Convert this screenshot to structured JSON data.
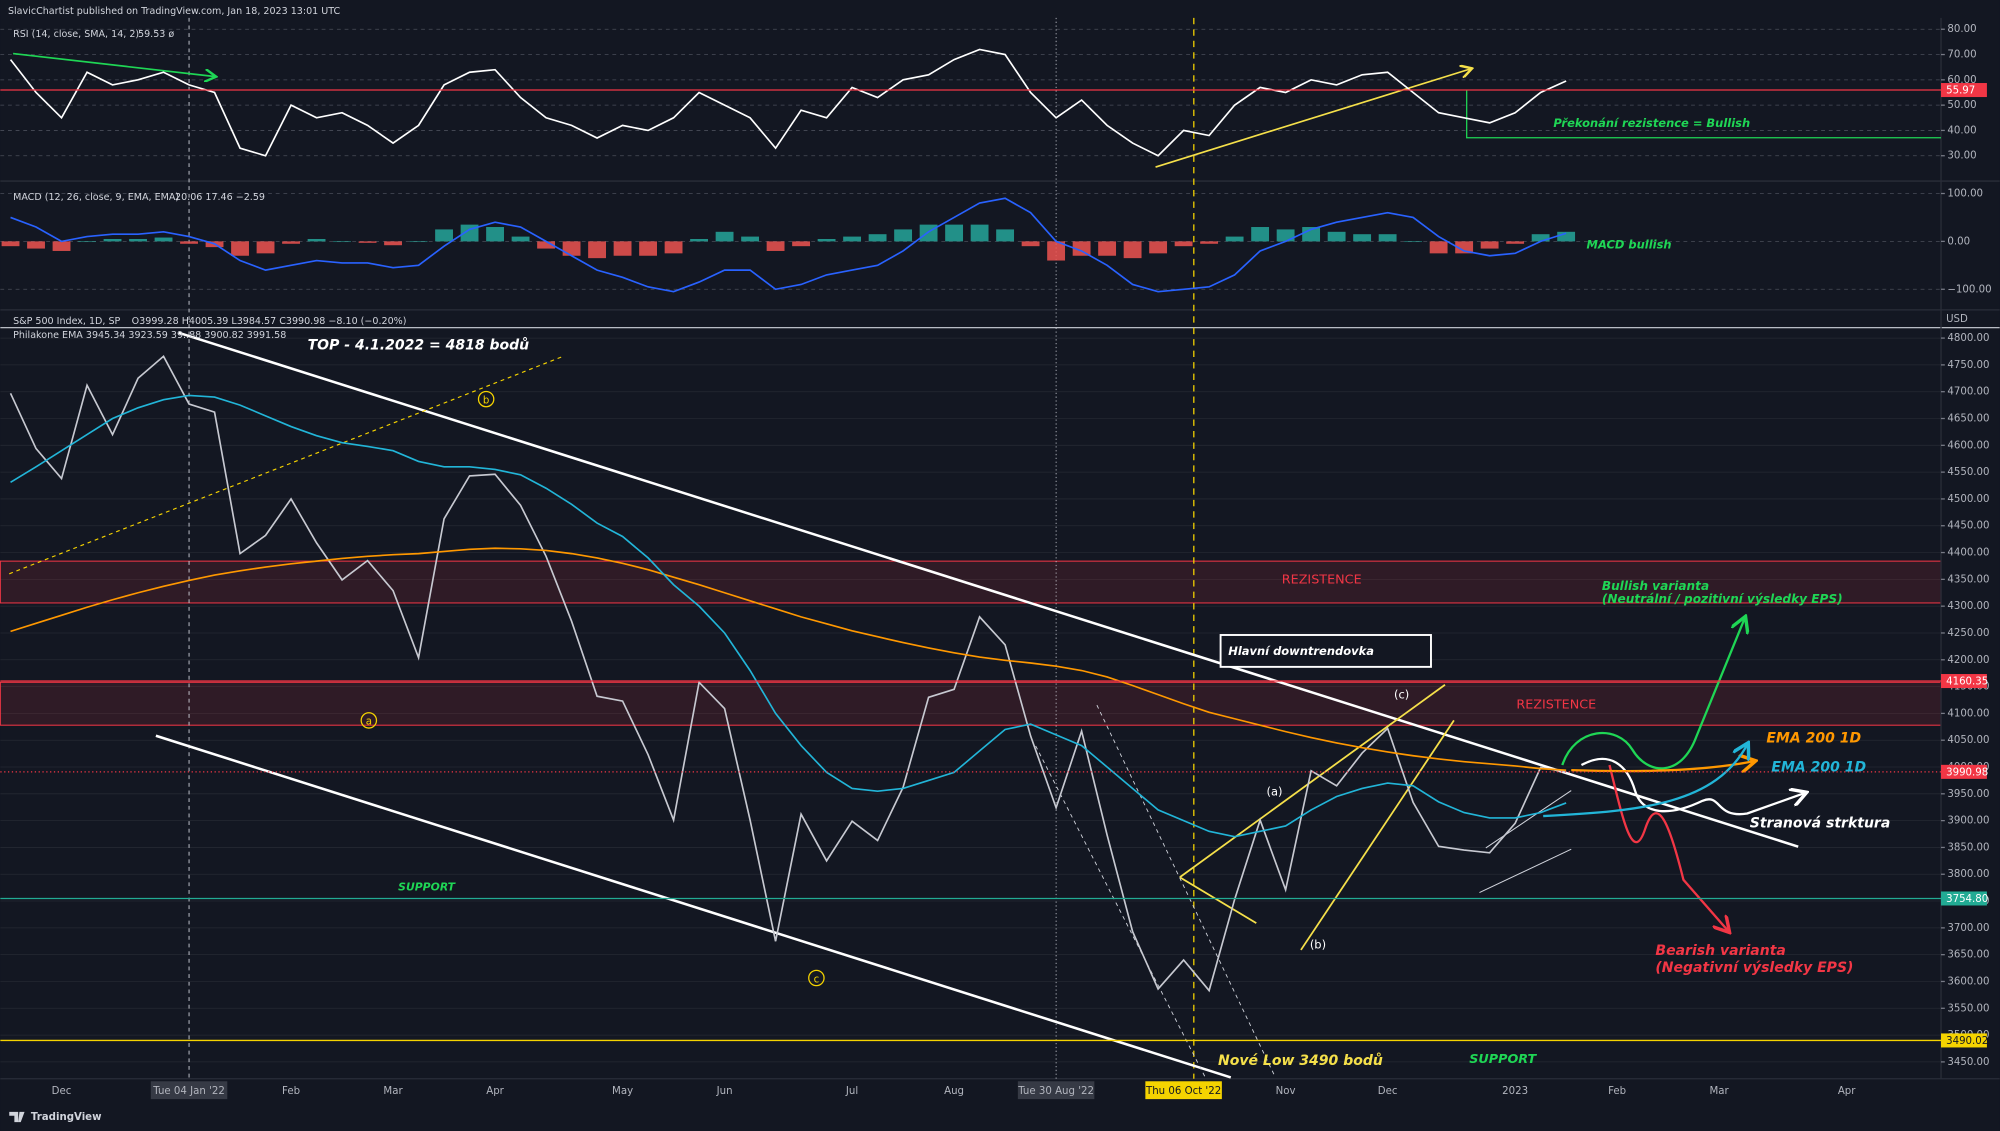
{
  "header": "SlavicChartist published on TradingView.com, Jan 18, 2023 13:01 UTC",
  "footer": "TradingView",
  "chart_data": [
    {
      "type": "line",
      "legend_values": "59.53 ø",
      "ylim": [
        21,
        84.5
      ],
      "yticks": [
        {
          "value": 30,
          "label": "30.00"
        },
        {
          "value": 40,
          "label": "40.00"
        },
        {
          "value": 50,
          "label": "50.00"
        },
        {
          "value": 60,
          "label": "60.00"
        },
        {
          "value": 70,
          "label": "70.00"
        },
        {
          "value": 80,
          "label": "80.00"
        }
      ],
      "levels": [
        {
          "value": 55.97,
          "label": "55.97",
          "color": "#f23645",
          "style": "solid"
        }
      ],
      "annotations": [
        "Překonání rezistence = Bullish"
      ],
      "series": [
        {
          "name": "RSI (14, close, SMA, 14, 2)",
          "color": "#ffffff",
          "type": "line",
          "values": [
            68,
            55,
            45,
            63,
            58,
            60,
            63,
            58,
            55,
            33,
            30,
            50,
            45,
            47,
            42,
            35,
            42,
            58,
            63,
            64,
            53,
            45,
            42,
            37,
            42,
            40,
            45,
            55,
            50,
            45,
            33,
            48,
            45,
            57,
            53,
            60,
            62,
            68,
            72,
            70,
            55,
            45,
            52,
            42,
            35,
            30,
            40,
            38,
            50,
            57,
            55,
            60,
            58,
            62,
            63,
            55,
            47,
            45,
            43,
            47,
            55,
            59.53,
            null,
            null,
            null,
            null,
            null,
            null,
            null,
            null,
            null,
            null,
            null,
            null,
            null,
            null
          ]
        }
      ]
    },
    {
      "type": "line",
      "legend_values": "20.06 17.46 −2.59",
      "ylim": [
        -135,
        118
      ],
      "yticks": [
        {
          "value": -100,
          "label": "−100.00"
        },
        {
          "value": 0,
          "label": "0.00"
        },
        {
          "value": 100,
          "label": "100.00"
        }
      ],
      "annotations": [
        "MACD bullish"
      ],
      "series": [
        {
          "name": "MACD (12, 26, close, 9, EMA, EMA)",
          "color": "#26a69a",
          "negative_color": "#ef5350",
          "type": "histogram",
          "values": [
            -10,
            -15,
            -20,
            0,
            5,
            5,
            8,
            -5,
            -12,
            -30,
            -25,
            -5,
            5,
            0,
            -3,
            -8,
            0,
            25,
            35,
            30,
            10,
            -15,
            -30,
            -35,
            -30,
            -30,
            -25,
            5,
            20,
            10,
            -20,
            -10,
            5,
            10,
            15,
            25,
            35,
            35,
            35,
            25,
            -10,
            -40,
            -30,
            -30,
            -35,
            -25,
            -10,
            -5,
            10,
            30,
            25,
            30,
            20,
            15,
            15,
            0,
            -25,
            -25,
            -15,
            -5,
            15,
            20,
            null,
            null,
            null,
            null,
            null,
            null,
            null,
            null,
            null,
            null,
            null,
            null,
            null,
            null
          ]
        },
        {
          "color": "#2962ff",
          "type": "line",
          "values": [
            50,
            30,
            0,
            10,
            15,
            15,
            20,
            10,
            -5,
            -40,
            -60,
            -50,
            -40,
            -45,
            -45,
            -55,
            -50,
            -10,
            25,
            40,
            30,
            0,
            -30,
            -60,
            -75,
            -95,
            -105,
            -85,
            -60,
            -60,
            -100,
            -90,
            -70,
            -60,
            -50,
            -20,
            20,
            50,
            80,
            90,
            60,
            0,
            -20,
            -50,
            -90,
            -105,
            -100,
            -95,
            -70,
            -20,
            0,
            25,
            40,
            50,
            60,
            50,
            10,
            -20,
            -30,
            -25,
            0,
            17,
            null,
            null,
            null,
            null,
            null,
            null,
            null,
            null,
            null,
            null,
            null,
            null,
            null,
            null
          ]
        }
      ]
    },
    {
      "type": "line",
      "currency": "USD",
      "ohlc": "O3999.28 H4005.39 L3984.57 C3990.98 −8.10 (−0.20%)",
      "ema_legend": "Philakone EMA 3945.34 3923.59 39..88 3900.82 3991.58",
      "categories": [
        null,
        null,
        "Dec",
        null,
        null,
        null,
        null,
        "Tue 04 Jan '22",
        null,
        null,
        null,
        "Feb",
        null,
        null,
        null,
        "Mar",
        null,
        null,
        null,
        "Apr",
        null,
        null,
        null,
        null,
        "May",
        null,
        null,
        null,
        "Jun",
        null,
        null,
        null,
        null,
        "Jul",
        null,
        null,
        null,
        "Aug",
        null,
        null,
        null,
        "Tue 30 Aug '22",
        null,
        null,
        null,
        null,
        "Thu 06 Oct '22",
        null,
        null,
        null,
        "Nov",
        null,
        null,
        null,
        "Dec",
        null,
        null,
        null,
        null,
        "2023",
        null,
        null,
        null,
        "Feb",
        null,
        null,
        null,
        "Mar",
        null,
        null,
        null,
        null,
        "Apr",
        null,
        null,
        null
      ],
      "ylim": [
        3421,
        4817
      ],
      "yticks": [
        {
          "value": 3450,
          "label": "3450.00"
        },
        {
          "value": 3500,
          "label": "3500.00"
        },
        {
          "value": 3550,
          "label": "3550.00"
        },
        {
          "value": 3600,
          "label": "3600.00"
        },
        {
          "value": 3650,
          "label": "3650.00"
        },
        {
          "value": 3700,
          "label": "3700.00"
        },
        {
          "value": 3750,
          "label": "3750.00"
        },
        {
          "value": 3800,
          "label": "3800.00"
        },
        {
          "value": 3850,
          "label": "3850.00"
        },
        {
          "value": 3900,
          "label": "3900.00"
        },
        {
          "value": 3950,
          "label": "3950.00"
        },
        {
          "value": 4000,
          "label": "4000.00"
        },
        {
          "value": 4050,
          "label": "4050.00"
        },
        {
          "value": 4100,
          "label": "4100.00"
        },
        {
          "value": 4150,
          "label": "4150.00"
        },
        {
          "value": 4200,
          "label": "4200.00"
        },
        {
          "value": 4250,
          "label": "4250.00"
        },
        {
          "value": 4300,
          "label": "4300.00"
        },
        {
          "value": 4350,
          "label": "4350.00"
        },
        {
          "value": 4400,
          "label": "4400.00"
        },
        {
          "value": 4450,
          "label": "4450.00"
        },
        {
          "value": 4500,
          "label": "4500.00"
        },
        {
          "value": 4550,
          "label": "4550.00"
        },
        {
          "value": 4600,
          "label": "4600.00"
        },
        {
          "value": 4650,
          "label": "4650.00"
        },
        {
          "value": 4700,
          "label": "4700.00"
        },
        {
          "value": 4750,
          "label": "4750.00"
        },
        {
          "value": 4800,
          "label": "4800.00"
        }
      ],
      "zones": [
        {
          "from": 4306,
          "to": 4384,
          "label": "REZISTENCE"
        },
        {
          "from": 4078,
          "to": 4158,
          "label": "REZISTENCE"
        }
      ],
      "levels": [
        {
          "value": 4160.35,
          "label": "4160.35",
          "color": "#f23645",
          "style": "solid"
        },
        {
          "value": 3990.98,
          "label": "3990.98",
          "color": "#f23645",
          "style": "dotted"
        },
        {
          "value": 3754.8,
          "label": "3754.80",
          "color": "#22ab94",
          "style": "solid",
          "text": "SUPPORT"
        },
        {
          "value": 3490.02,
          "label": "3490.02",
          "color": "#f5d300",
          "style": "solid",
          "text": "SUPPORT"
        }
      ],
      "annotations": [
        "TOP - 4.1.2022 = 4818 bodů",
        "Hlavní downtrendovka",
        "Bullish varianta",
        "(Neutrální / pozitivní výsledky EPS)",
        "Bearish varianta",
        "(Negativní výsledky EPS)",
        "Stranová strktura",
        "Nové Low 3490 bodů",
        "(a)",
        "(b)",
        "(c)",
        "a",
        "b",
        "c"
      ],
      "series": [
        {
          "name": "S&P 500 Index, 1D, SP",
          "color": "#c7c9d1",
          "type": "line",
          "values": [
            4697,
            4594,
            4538,
            4712,
            4620,
            4725,
            4766,
            4677,
            4662,
            4398,
            4432,
            4500,
            4418,
            4349,
            4385,
            4329,
            4204,
            4463,
            4543,
            4546,
            4488,
            4393,
            4272,
            4132,
            4123,
            4023,
            3901,
            4158,
            4109,
            3901,
            3675,
            3912,
            3825,
            3899,
            3863,
            3962,
            4130,
            4145,
            4280,
            4228,
            4058,
            3924,
            4067,
            3873,
            3693,
            3586,
            3640,
            3583,
            3753,
            3901,
            3771,
            3993,
            3965,
            4026,
            4072,
            3934,
            3852,
            3845,
            3840,
            3895,
            3999,
            3990.98,
            null,
            null,
            null,
            null,
            null,
            null,
            null,
            null,
            null,
            null,
            null,
            null,
            null,
            null
          ]
        },
        {
          "name": "EMA 200 1D",
          "color": "#ff9800",
          "type": "line",
          "values": [
            4253,
            4268,
            4283,
            4298,
            4312,
            4325,
            4337,
            4348,
            4358,
            4366,
            4373,
            4379,
            4384,
            4389,
            4393,
            4396,
            4398,
            4402,
            4406,
            4408,
            4407,
            4404,
            4398,
            4390,
            4380,
            4368,
            4354,
            4340,
            4325,
            4310,
            4295,
            4280,
            4267,
            4254,
            4243,
            4232,
            4222,
            4213,
            4205,
            4199,
            4194,
            4188,
            4180,
            4168,
            4152,
            4135,
            4118,
            4102,
            4090,
            4078,
            4066,
            4055,
            4045,
            4036,
            4028,
            4021,
            4015,
            4010,
            4006,
            4002,
            3997,
            3994,
            null,
            null,
            null,
            null,
            null,
            null,
            null,
            null,
            null,
            null,
            null,
            null,
            null,
            null
          ]
        },
        {
          "name": "EMA 200 1D",
          "color": "#22b5d8",
          "type": "line",
          "values": [
            4531,
            4560,
            4590,
            4620,
            4650,
            4670,
            4685,
            4693,
            4690,
            4675,
            4655,
            4635,
            4618,
            4605,
            4598,
            4590,
            4570,
            4560,
            4560,
            4555,
            4545,
            4520,
            4490,
            4455,
            4430,
            4390,
            4340,
            4300,
            4250,
            4180,
            4100,
            4040,
            3990,
            3960,
            3955,
            3960,
            3975,
            3990,
            4030,
            4070,
            4080,
            4060,
            4040,
            4000,
            3960,
            3920,
            3900,
            3880,
            3870,
            3880,
            3890,
            3920,
            3945,
            3960,
            3970,
            3965,
            3935,
            3915,
            3905,
            3905,
            3915,
            3933,
            null,
            null,
            null,
            null,
            null,
            null,
            null,
            null,
            null,
            null,
            null,
            null,
            null,
            null
          ]
        }
      ]
    }
  ]
}
